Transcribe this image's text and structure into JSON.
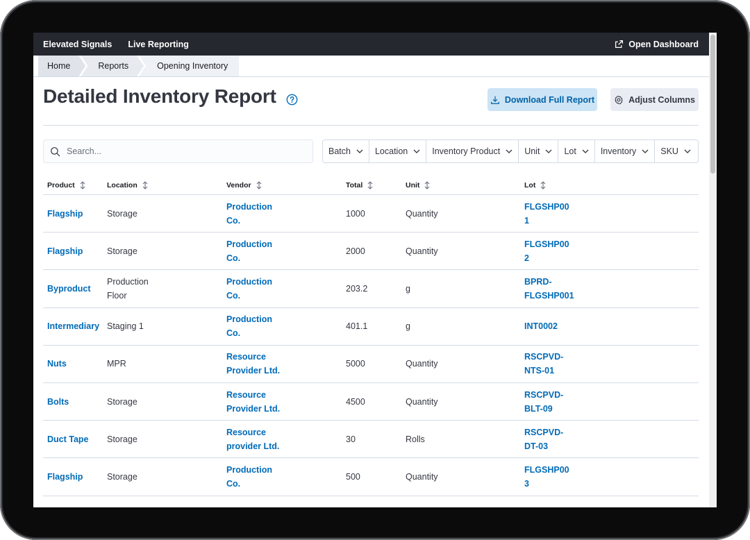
{
  "nav": {
    "brand": "Elevated Signals",
    "link": "Live Reporting",
    "open_dashboard": "Open Dashboard"
  },
  "breadcrumbs": [
    "Home",
    "Reports",
    "Opening Inventory"
  ],
  "header": {
    "title": "Detailed Inventory Report",
    "download_label": "Download Full Report",
    "adjust_label": "Adjust Columns"
  },
  "search": {
    "placeholder": "Search..."
  },
  "filters": [
    "Batch",
    "Location",
    "Inventory Product",
    "Unit",
    "Lot",
    "Inventory",
    "SKU"
  ],
  "table": {
    "columns": [
      "Product",
      "Location",
      "Vendor",
      "Total",
      "Unit",
      "Lot"
    ],
    "rows": [
      {
        "product": "Flagship",
        "location": "Storage",
        "vendor": "Production Co.",
        "total": "1000",
        "unit": "Quantity",
        "lot": "FLGSHP001"
      },
      {
        "product": "Flagship",
        "location": "Storage",
        "vendor": "Production Co.",
        "total": "2000",
        "unit": "Quantity",
        "lot": "FLGSHP002"
      },
      {
        "product": "Byproduct",
        "location": "Production Floor",
        "vendor": "Production Co.",
        "total": "203.2",
        "unit": "g",
        "lot": "BPRD-FLGSHP001"
      },
      {
        "product": "Intermediary",
        "location": "Staging 1",
        "vendor": "Production Co.",
        "total": "401.1",
        "unit": "g",
        "lot": "INT0002"
      },
      {
        "product": "Nuts",
        "location": "MPR",
        "vendor": "Resource Provider Ltd.",
        "total": "5000",
        "unit": "Quantity",
        "lot": "RSCPVD-NTS-01"
      },
      {
        "product": "Bolts",
        "location": "Storage",
        "vendor": "Resource Provider Ltd.",
        "total": "4500",
        "unit": "Quantity",
        "lot": "RSCPVD-BLT-09"
      },
      {
        "product": "Duct Tape",
        "location": "Storage",
        "vendor": "Resource provider Ltd.",
        "total": "30",
        "unit": "Rolls",
        "lot": "RSCPVD-DT-03"
      },
      {
        "product": "Flagship",
        "location": "Storage",
        "vendor": "Production Co.",
        "total": "500",
        "unit": "Quantity",
        "lot": "FLGSHP003"
      }
    ]
  },
  "colors": {
    "nav_bg": "#25282f",
    "link": "#006bb8",
    "primary_button_bg": "#cce4f5",
    "primary_button_text": "#0061a6"
  }
}
